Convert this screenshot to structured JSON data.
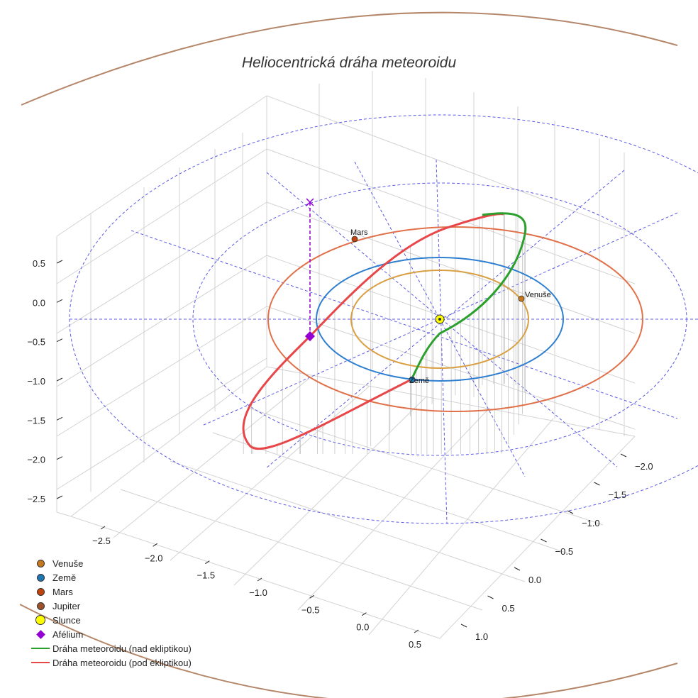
{
  "chart_data": {
    "type": "3d-line",
    "title": "Heliocentrická dráha meteoroidu",
    "z_ticks": [
      "0.5",
      "0.0",
      "−0.5",
      "−1.0",
      "−1.5",
      "−2.0",
      "−2.5"
    ],
    "x_ticks": [
      "−2.5",
      "−2.0",
      "−1.5",
      "−1.0",
      "−0.5",
      "0.0",
      "0.5"
    ],
    "y_ticks": [
      "−2.0",
      "−1.5",
      "−1.0",
      "−0.5",
      "0.0",
      "0.5",
      "1.0"
    ],
    "planets": [
      {
        "name": "Venuše",
        "label": "Venuše",
        "color": "#c8781e",
        "orbit_color": "#d9a043",
        "orbit_radius_au": 0.72
      },
      {
        "name": "Země",
        "label": "Země",
        "color": "#1f77b4",
        "orbit_color": "#2f7fd0",
        "orbit_radius_au": 1.0
      },
      {
        "name": "Mars",
        "label": "Mars",
        "color": "#c1440e",
        "orbit_color": "#e0714a",
        "orbit_radius_au": 1.52
      }
    ],
    "reference_circles_radius_au": [
      2.0,
      3.0
    ],
    "meteoroid_orbit": {
      "above_ecliptic_color": "#2ca02c",
      "below_ecliptic_color": "#e8474a"
    },
    "legend": [
      {
        "label": "Venuše",
        "kind": "dot",
        "color": "#c8781e"
      },
      {
        "label": "Země",
        "kind": "dot",
        "color": "#1f77b4"
      },
      {
        "label": "Mars",
        "kind": "dot",
        "color": "#c1440e"
      },
      {
        "label": "Jupiter",
        "kind": "dot",
        "color": "#a0522d"
      },
      {
        "label": "Slunce",
        "kind": "sun",
        "color": "#ffff00"
      },
      {
        "label": "Afélium",
        "kind": "diamond",
        "color": "#9400d3"
      },
      {
        "label": "Dráha meteoroidu (nad ekliptikou)",
        "kind": "line",
        "color": "#2ca02c"
      },
      {
        "label": "Dráha meteoroidu (pod ekliptikou)",
        "kind": "line",
        "color": "#e8474a"
      }
    ],
    "jupiter_orbit_color": "#b5876a",
    "grid_color": "#d3d3d3",
    "ref_line_color": "#5b5be6"
  }
}
